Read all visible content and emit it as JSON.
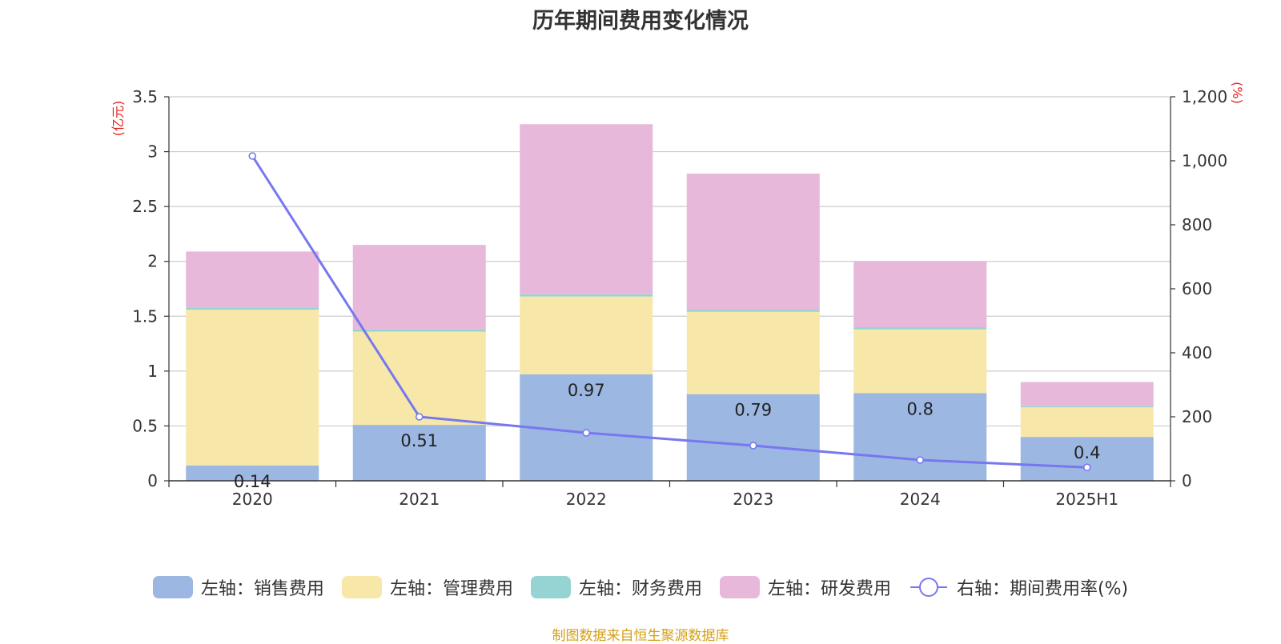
{
  "title": "历年期间费用变化情况",
  "source_note": "制图数据来自恒生聚源数据库",
  "colors": {
    "sales": "#9cb7e2",
    "admin": "#f7e7a9",
    "finance": "#96d4d3",
    "rnd": "#e7b8d9",
    "rate_line": "#7777f0",
    "grid": "#cccccc",
    "axis": "#333333"
  },
  "chart_data": {
    "type": "bar",
    "stacked": true,
    "categories": [
      "2020",
      "2021",
      "2022",
      "2023",
      "2024",
      "2025H1"
    ],
    "left_axis": {
      "unit": "(亿元)",
      "ylim": [
        0,
        3.5
      ],
      "ticks": [
        "0",
        "0.5",
        "1",
        "1.5",
        "2",
        "2.5",
        "3",
        "3.5"
      ]
    },
    "right_axis": {
      "unit": "(%)",
      "ylim": [
        0,
        1200
      ],
      "ticks": [
        "0",
        "200",
        "400",
        "600",
        "800",
        "1,000",
        "1,200"
      ]
    },
    "series": [
      {
        "name": "左轴：销售费用",
        "axis": "left",
        "type": "bar",
        "color_key": "sales",
        "values": [
          0.14,
          0.51,
          0.97,
          0.79,
          0.8,
          0.4
        ],
        "labels": [
          "0.14",
          "0.51",
          "0.97",
          "0.79",
          "0.8",
          "0.4"
        ]
      },
      {
        "name": "左轴：管理费用",
        "axis": "left",
        "type": "bar",
        "color_key": "admin",
        "values": [
          1.42,
          0.85,
          0.71,
          0.75,
          0.58,
          0.27
        ]
      },
      {
        "name": "左轴：财务费用",
        "axis": "left",
        "type": "bar",
        "color_key": "finance",
        "values": [
          0.02,
          0.02,
          0.02,
          0.02,
          0.02,
          0.01
        ]
      },
      {
        "name": "左轴：研发费用",
        "axis": "left",
        "type": "bar",
        "color_key": "rnd",
        "values": [
          0.51,
          0.77,
          1.55,
          1.24,
          0.6,
          0.22
        ]
      },
      {
        "name": "右轴：期间费用率(%)",
        "axis": "right",
        "type": "line",
        "color_key": "rate_line",
        "values": [
          1015,
          200,
          150,
          110,
          65,
          42
        ]
      }
    ],
    "grid": true,
    "legend_position": "bottom"
  }
}
